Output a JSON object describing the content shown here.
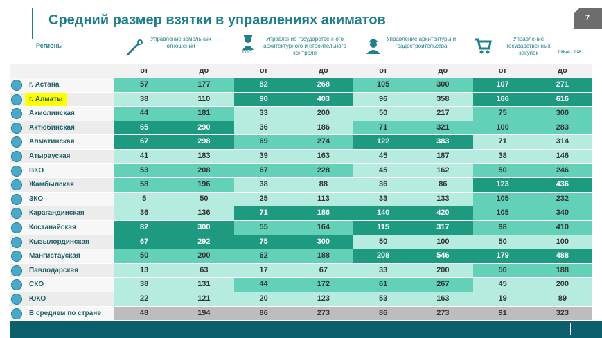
{
  "header": {
    "title": "Средний размер взятки в управлениях акиматов",
    "page_number": "7"
  },
  "table": {
    "region_header": "Регионы",
    "unit": "тыс. тг.",
    "icon_label": "ГОС",
    "groups": [
      "Управление земельных отношений",
      "Управление государственного архитектурного и строительного контроля",
      "Управление архитектуры и градостроительства",
      "Управление государственных закупок"
    ],
    "subheaders": [
      "от",
      "до"
    ],
    "palette": {
      "dark": "#1e9a80",
      "mid": "#63d1b7",
      "light": "#b6ecdf",
      "gray": "#bdbdbd"
    },
    "rows": [
      {
        "name": "г. Астана",
        "values": [
          57,
          177,
          82,
          268,
          105,
          300,
          107,
          271
        ],
        "shades": [
          "mid",
          "dark",
          "mid",
          "dark"
        ]
      },
      {
        "name": "г. Алматы",
        "values": [
          38,
          110,
          90,
          403,
          96,
          358,
          166,
          616
        ],
        "shades": [
          "light",
          "dark",
          "light",
          "dark"
        ],
        "highlight": true
      },
      {
        "name": "Акмолинская",
        "values": [
          44,
          181,
          33,
          200,
          50,
          217,
          75,
          300
        ],
        "shades": [
          "mid",
          "light",
          "light",
          "mid"
        ]
      },
      {
        "name": "Актюбинская",
        "values": [
          65,
          290,
          36,
          186,
          71,
          321,
          100,
          283
        ],
        "shades": [
          "dark",
          "light",
          "mid",
          "mid"
        ]
      },
      {
        "name": "Алматинская",
        "values": [
          67,
          298,
          69,
          274,
          122,
          383,
          71,
          314
        ],
        "shades": [
          "dark",
          "mid",
          "dark",
          "light"
        ]
      },
      {
        "name": "Атырауская",
        "values": [
          41,
          183,
          39,
          163,
          45,
          187,
          38,
          146
        ],
        "shades": [
          "light",
          "light",
          "light",
          "light"
        ]
      },
      {
        "name": "ВКО",
        "values": [
          53,
          208,
          67,
          228,
          45,
          162,
          50,
          246
        ],
        "shades": [
          "mid",
          "mid",
          "light",
          "mid"
        ]
      },
      {
        "name": "Жамбылская",
        "values": [
          58,
          196,
          38,
          88,
          36,
          86,
          123,
          436
        ],
        "shades": [
          "mid",
          "light",
          "light",
          "dark"
        ]
      },
      {
        "name": "ЗКО",
        "values": [
          5,
          50,
          25,
          113,
          33,
          133,
          105,
          232
        ],
        "shades": [
          "light",
          "light",
          "light",
          "mid"
        ]
      },
      {
        "name": "Карагандинская",
        "values": [
          36,
          136,
          71,
          186,
          140,
          420,
          105,
          340
        ],
        "shades": [
          "light",
          "dark",
          "dark",
          "mid"
        ]
      },
      {
        "name": "Костанайская",
        "values": [
          82,
          300,
          55,
          164,
          115,
          317,
          98,
          410
        ],
        "shades": [
          "dark",
          "mid",
          "dark",
          "mid"
        ]
      },
      {
        "name": "Кызылординская",
        "values": [
          67,
          292,
          75,
          300,
          50,
          100,
          50,
          100
        ],
        "shades": [
          "dark",
          "dark",
          "light",
          "light"
        ]
      },
      {
        "name": "Мангистауская",
        "values": [
          50,
          200,
          62,
          188,
          208,
          546,
          179,
          488
        ],
        "shades": [
          "mid",
          "mid",
          "dark",
          "dark"
        ]
      },
      {
        "name": "Павлодарская",
        "values": [
          13,
          63,
          17,
          67,
          33,
          200,
          50,
          188
        ],
        "shades": [
          "light",
          "light",
          "light",
          "mid"
        ]
      },
      {
        "name": "СКО",
        "values": [
          38,
          131,
          44,
          172,
          61,
          267,
          45,
          200
        ],
        "shades": [
          "light",
          "mid",
          "mid",
          "light"
        ]
      },
      {
        "name": "ЮКО",
        "values": [
          22,
          121,
          20,
          123,
          53,
          163,
          19,
          89
        ],
        "shades": [
          "light",
          "light",
          "light",
          "light"
        ]
      },
      {
        "name": "В среднем по стране",
        "values": [
          48,
          194,
          86,
          273,
          86,
          273,
          91,
          323
        ],
        "shades": [
          "gray",
          "gray",
          "gray",
          "gray"
        ]
      }
    ]
  }
}
